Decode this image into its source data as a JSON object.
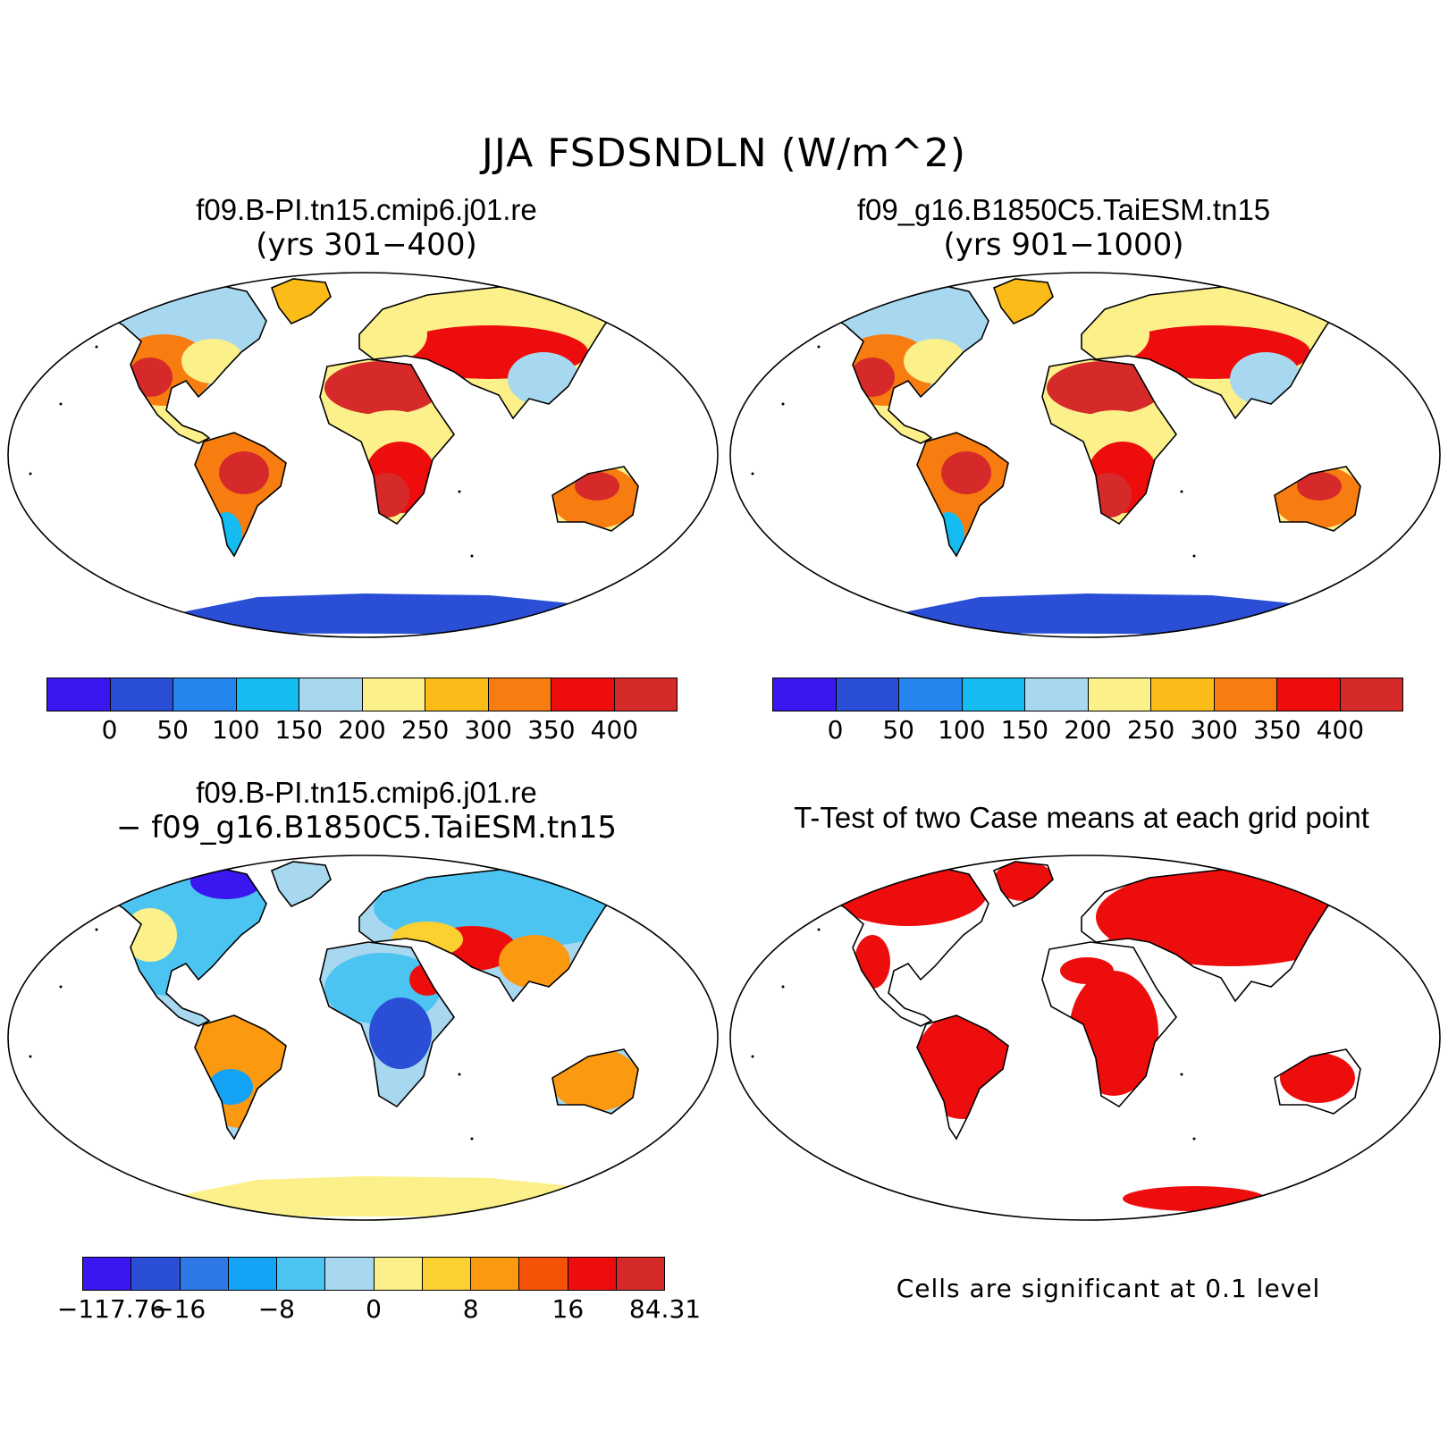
{
  "figure": {
    "title": "JJA FSDSNDLN (W/m^2)"
  },
  "panels": {
    "top_left": {
      "title_line1": "f09.B-PI.tn15.cmip6.j01.re",
      "title_line2": "(yrs 301−400)"
    },
    "top_right": {
      "title_line1": "f09_g16.B1850C5.TaiESM.tn15",
      "title_line2": "(yrs 901−1000)"
    },
    "bottom_left": {
      "title_line1": "f09.B-PI.tn15.cmip6.j01.re",
      "title_line2": "− f09_g16.B1850C5.TaiESM.tn15"
    },
    "bottom_right": {
      "title_line1": "T-Test of two Case means at each grid point",
      "note": "Cells are significant at 0.1 level"
    }
  },
  "colorbars": {
    "absolute": {
      "colors": [
        "#3a16f0",
        "#2a4fd6",
        "#2686f0",
        "#14bcf2",
        "#a7d8f0",
        "#fbf08a",
        "#fbbb19",
        "#f77d10",
        "#ee0d0d",
        "#d62a2a"
      ],
      "labels": [
        "0",
        "50",
        "100",
        "150",
        "200",
        "250",
        "300",
        "350",
        "400"
      ]
    },
    "difference": {
      "colors": [
        "#3a16f0",
        "#2a4fd6",
        "#2e78e8",
        "#14a3f5",
        "#4cc4f2",
        "#a7d8f0",
        "#fbf08a",
        "#fcd030",
        "#fb9a10",
        "#f75308",
        "#ee0d0d",
        "#d62a2a"
      ],
      "labels": [
        "−117.76",
        "−16",
        "−8",
        "0",
        "8",
        "16",
        "84.31"
      ]
    }
  },
  "legend_colors": {
    "significant": "#ee0d0d",
    "land_outline": "#000000"
  }
}
